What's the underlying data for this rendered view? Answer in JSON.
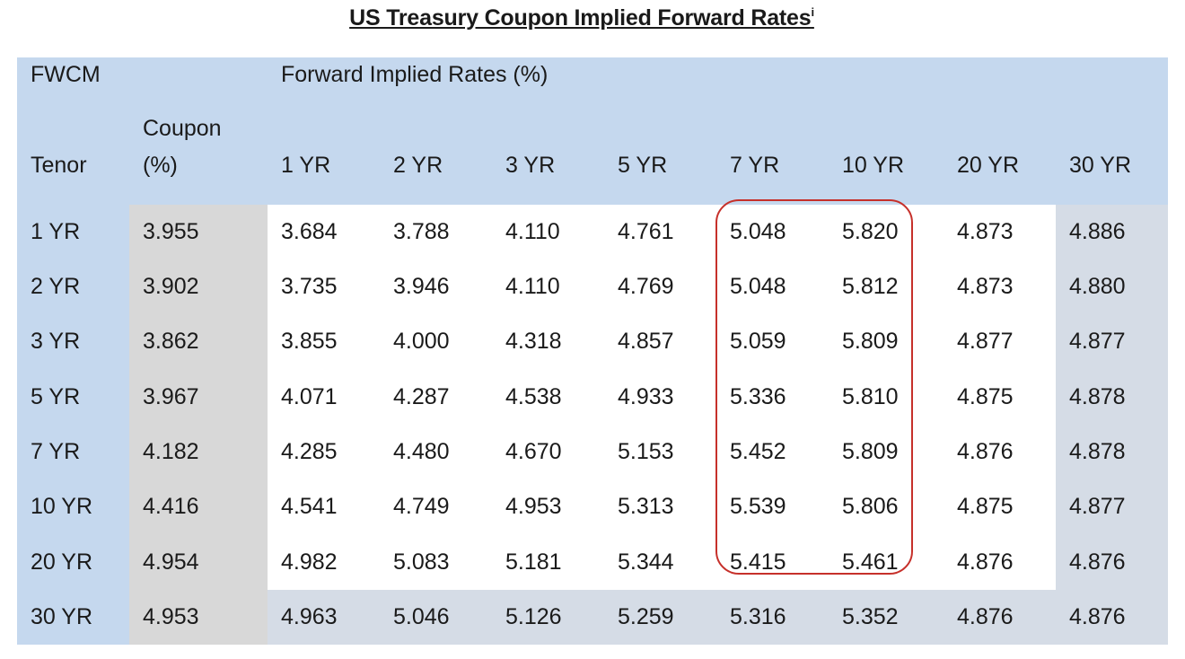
{
  "title": "US Treasury Coupon Implied Forward Rates",
  "title_superscript": "i",
  "header": {
    "fwcm": "FWCM",
    "group_label": "Forward Implied Rates (%)",
    "tenor": "Tenor",
    "coupon_line1": "Coupon",
    "coupon_line2": "(%)",
    "columns": [
      "1 YR",
      "2 YR",
      "3 YR",
      "5 YR",
      "7 YR",
      "10 YR",
      "20 YR",
      "30 YR"
    ]
  },
  "rows": [
    {
      "tenor": "1 YR",
      "coupon": "3.955",
      "rates": [
        "3.684",
        "3.788",
        "4.110",
        "4.761",
        "5.048",
        "5.820",
        "4.873",
        "4.886"
      ]
    },
    {
      "tenor": "2 YR",
      "coupon": "3.902",
      "rates": [
        "3.735",
        "3.946",
        "4.110",
        "4.769",
        "5.048",
        "5.812",
        "4.873",
        "4.880"
      ]
    },
    {
      "tenor": "3 YR",
      "coupon": "3.862",
      "rates": [
        "3.855",
        "4.000",
        "4.318",
        "4.857",
        "5.059",
        "5.809",
        "4.877",
        "4.877"
      ]
    },
    {
      "tenor": "5 YR",
      "coupon": "3.967",
      "rates": [
        "4.071",
        "4.287",
        "4.538",
        "4.933",
        "5.336",
        "5.810",
        "4.875",
        "4.878"
      ]
    },
    {
      "tenor": "7 YR",
      "coupon": "4.182",
      "rates": [
        "4.285",
        "4.480",
        "4.670",
        "5.153",
        "5.452",
        "5.809",
        "4.876",
        "4.878"
      ]
    },
    {
      "tenor": "10 YR",
      "coupon": "4.416",
      "rates": [
        "4.541",
        "4.749",
        "4.953",
        "5.313",
        "5.539",
        "5.806",
        "4.875",
        "4.877"
      ]
    },
    {
      "tenor": "20 YR",
      "coupon": "4.954",
      "rates": [
        "4.982",
        "5.083",
        "5.181",
        "5.344",
        "5.415",
        "5.461",
        "4.876",
        "4.876"
      ]
    },
    {
      "tenor": "30 YR",
      "coupon": "4.953",
      "rates": [
        "4.963",
        "5.046",
        "5.126",
        "5.259",
        "5.316",
        "5.352",
        "4.876",
        "4.876"
      ]
    }
  ],
  "colors": {
    "header_blue": "#c5d8ee",
    "coupon_gray": "#d8d8d8",
    "last_col_gray": "#d5dce6",
    "highlight_red": "#c6302a"
  }
}
